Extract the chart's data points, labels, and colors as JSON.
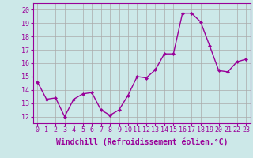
{
  "x": [
    0,
    1,
    2,
    3,
    4,
    5,
    6,
    7,
    8,
    9,
    10,
    11,
    12,
    13,
    14,
    15,
    16,
    17,
    18,
    19,
    20,
    21,
    22,
    23
  ],
  "y": [
    14.6,
    13.3,
    13.4,
    12.0,
    13.3,
    13.7,
    13.8,
    12.5,
    12.1,
    12.5,
    13.6,
    15.0,
    14.9,
    15.5,
    16.7,
    16.7,
    19.75,
    19.75,
    19.1,
    17.3,
    15.45,
    15.35,
    16.1,
    16.3
  ],
  "line_color": "#990099",
  "marker": "D",
  "marker_size": 2,
  "linewidth": 1.0,
  "ylim": [
    11.5,
    20.5
  ],
  "xlim": [
    -0.5,
    23.5
  ],
  "yticks": [
    12,
    13,
    14,
    15,
    16,
    17,
    18,
    19,
    20
  ],
  "xticks": [
    0,
    1,
    2,
    3,
    4,
    5,
    6,
    7,
    8,
    9,
    10,
    11,
    12,
    13,
    14,
    15,
    16,
    17,
    18,
    19,
    20,
    21,
    22,
    23
  ],
  "xlabel": "Windchill (Refroidissement éolien,°C)",
  "background_color": "#cce8e8",
  "grid_color": "#aaaaaa",
  "tick_label_color": "#990099",
  "axis_label_color": "#990099",
  "xlabel_fontsize": 7,
  "tick_fontsize": 6,
  "spine_color": "#990099"
}
